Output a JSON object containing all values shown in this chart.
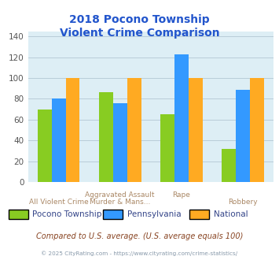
{
  "title": "2018 Pocono Township\nViolent Crime Comparison",
  "categories_line1": [
    "",
    "Aggravated Assault",
    "Rape",
    ""
  ],
  "categories_line2": [
    "All Violent Crime",
    "Murder & Mans...",
    "",
    "Robbery"
  ],
  "series": {
    "Pocono Township": [
      70,
      86,
      65,
      32
    ],
    "Pennsylvania": [
      80,
      76,
      123,
      89
    ],
    "National": [
      100,
      100,
      100,
      100
    ]
  },
  "colors": {
    "Pocono Township": "#88cc22",
    "Pennsylvania": "#3399ff",
    "National": "#ffaa22"
  },
  "ylim": [
    0,
    145
  ],
  "yticks": [
    0,
    20,
    40,
    60,
    80,
    100,
    120,
    140
  ],
  "plot_bg_color": "#ddeef5",
  "title_color": "#2255cc",
  "tick_label_color_top": "#aa8866",
  "tick_label_color_bot": "#aa8866",
  "footer_text": "Compared to U.S. average. (U.S. average equals 100)",
  "copyright_text": "© 2025 CityRating.com - https://www.cityrating.com/crime-statistics/",
  "footer_color": "#884422",
  "copyright_color": "#8899aa",
  "grid_color": "#b8ccd8",
  "bar_width": 0.23
}
